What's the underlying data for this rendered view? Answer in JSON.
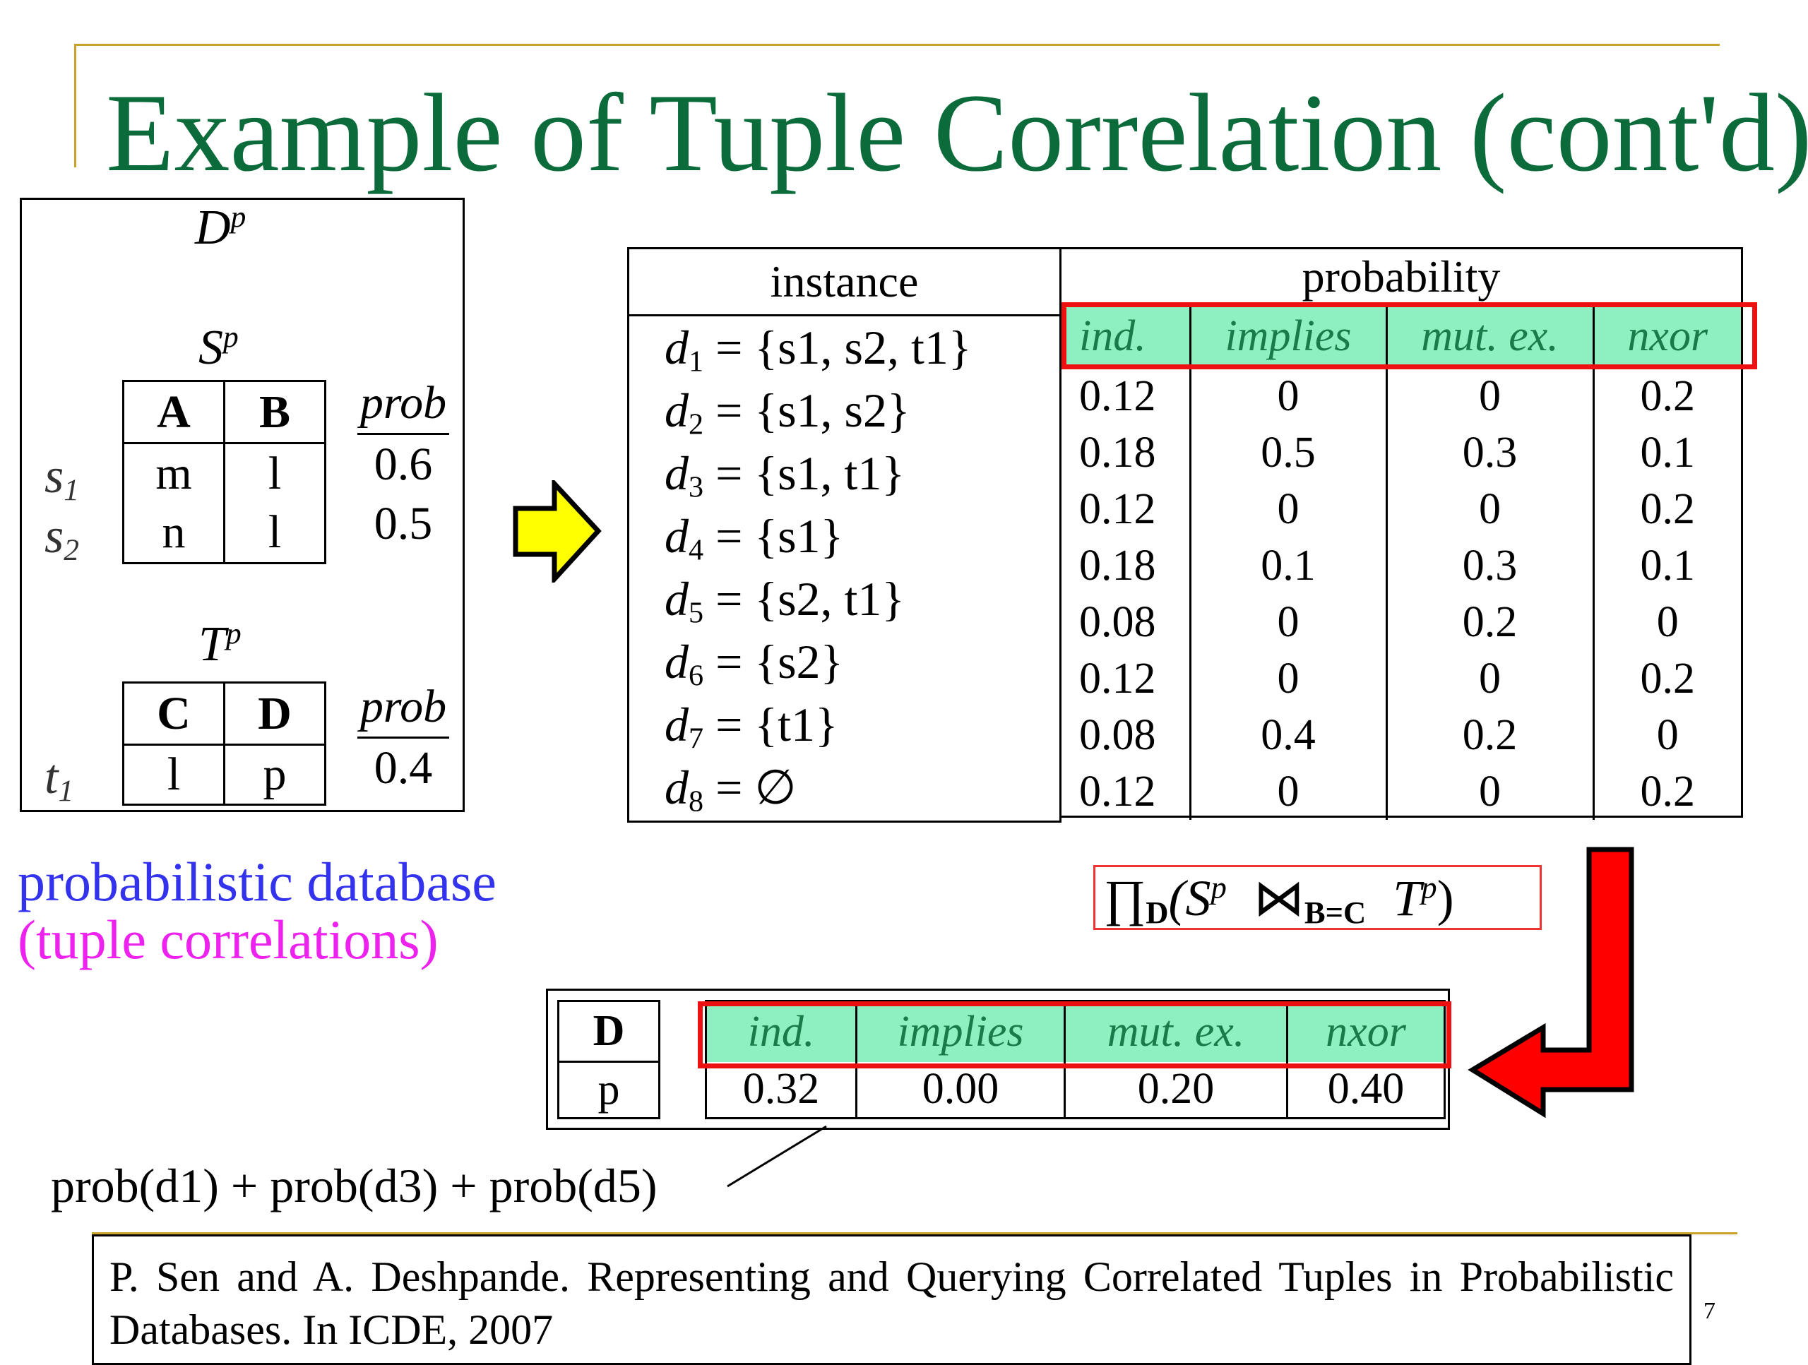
{
  "slide": {
    "title": "Example of Tuple Correlation (cont'd)",
    "page_number": "7"
  },
  "left_panel": {
    "db_label": "D",
    "db_label_sup": "p",
    "s_table": {
      "name": "S",
      "name_sup": "p",
      "headers": [
        "A",
        "B"
      ],
      "prob_header": "prob",
      "rows": [
        {
          "label": "s",
          "label_sub": "1",
          "cells": [
            "m",
            "l"
          ],
          "prob": "0.6"
        },
        {
          "label": "s",
          "label_sub": "2",
          "cells": [
            "n",
            "l"
          ],
          "prob": "0.5"
        }
      ]
    },
    "t_table": {
      "name": "T",
      "name_sup": "p",
      "headers": [
        "C",
        "D"
      ],
      "prob_header": "prob",
      "rows": [
        {
          "label": "t",
          "label_sub": "1",
          "cells": [
            "l",
            "p"
          ],
          "prob": "0.4"
        }
      ]
    },
    "caption_line1": "probabilistic database",
    "caption_line2": "(tuple correlations)"
  },
  "main_table": {
    "instance_header": "instance",
    "probability_header": "probability",
    "columns": [
      "ind.",
      "implies",
      "mut. ex.",
      "nxor"
    ],
    "instances": [
      {
        "name": "d",
        "sub": "1",
        "set": "= {s1, s2, t1}"
      },
      {
        "name": "d",
        "sub": "2",
        "set": "= {s1, s2}"
      },
      {
        "name": "d",
        "sub": "3",
        "set": "= {s1, t1}"
      },
      {
        "name": "d",
        "sub": "4",
        "set": "= {s1}"
      },
      {
        "name": "d",
        "sub": "5",
        "set": "= {s2, t1}"
      },
      {
        "name": "d",
        "sub": "6",
        "set": "= {s2}"
      },
      {
        "name": "d",
        "sub": "7",
        "set": "= {t1}"
      },
      {
        "name": "d",
        "sub": "8",
        "set": "= ∅"
      }
    ],
    "rows": [
      [
        "0.12",
        "0",
        "0",
        "0.2"
      ],
      [
        "0.18",
        "0.5",
        "0.3",
        "0.1"
      ],
      [
        "0.12",
        "0",
        "0",
        "0.2"
      ],
      [
        "0.18",
        "0.1",
        "0.3",
        "0.1"
      ],
      [
        "0.08",
        "0",
        "0.2",
        "0"
      ],
      [
        "0.12",
        "0",
        "0",
        "0.2"
      ],
      [
        "0.08",
        "0.4",
        "0.2",
        "0"
      ],
      [
        "0.12",
        "0",
        "0",
        "0.2"
      ]
    ]
  },
  "query_formula": {
    "pi": "∏",
    "pi_sub": "D",
    "open": "(S",
    "s_sup": "p",
    "join": "⋈",
    "join_sub": "B=C",
    "t": "T",
    "t_sup": "p",
    "close": ")"
  },
  "result_table": {
    "col_header": "D",
    "row_value": "p",
    "columns": [
      "ind.",
      "implies",
      "mut. ex.",
      "nxor"
    ],
    "values": [
      "0.32",
      "0.00",
      "0.20",
      "0.40"
    ]
  },
  "sum_formula": "prob(d1) + prob(d3) + prob(d5)",
  "reference": "P. Sen and A. Deshpande. Representing and Querying Correlated Tuples in Probabilistic Databases. In ICDE, 2007",
  "colors": {
    "title": "#0b6b3a",
    "accent_rule": "#c9a227",
    "highlight_fill": "#8ef0c0",
    "highlight_frame": "#ee1111",
    "caption_blue": "#3333ee",
    "caption_magenta": "#ee22ee",
    "arrow_yellow": "#ffff00",
    "arrow_red": "#ff0000"
  }
}
